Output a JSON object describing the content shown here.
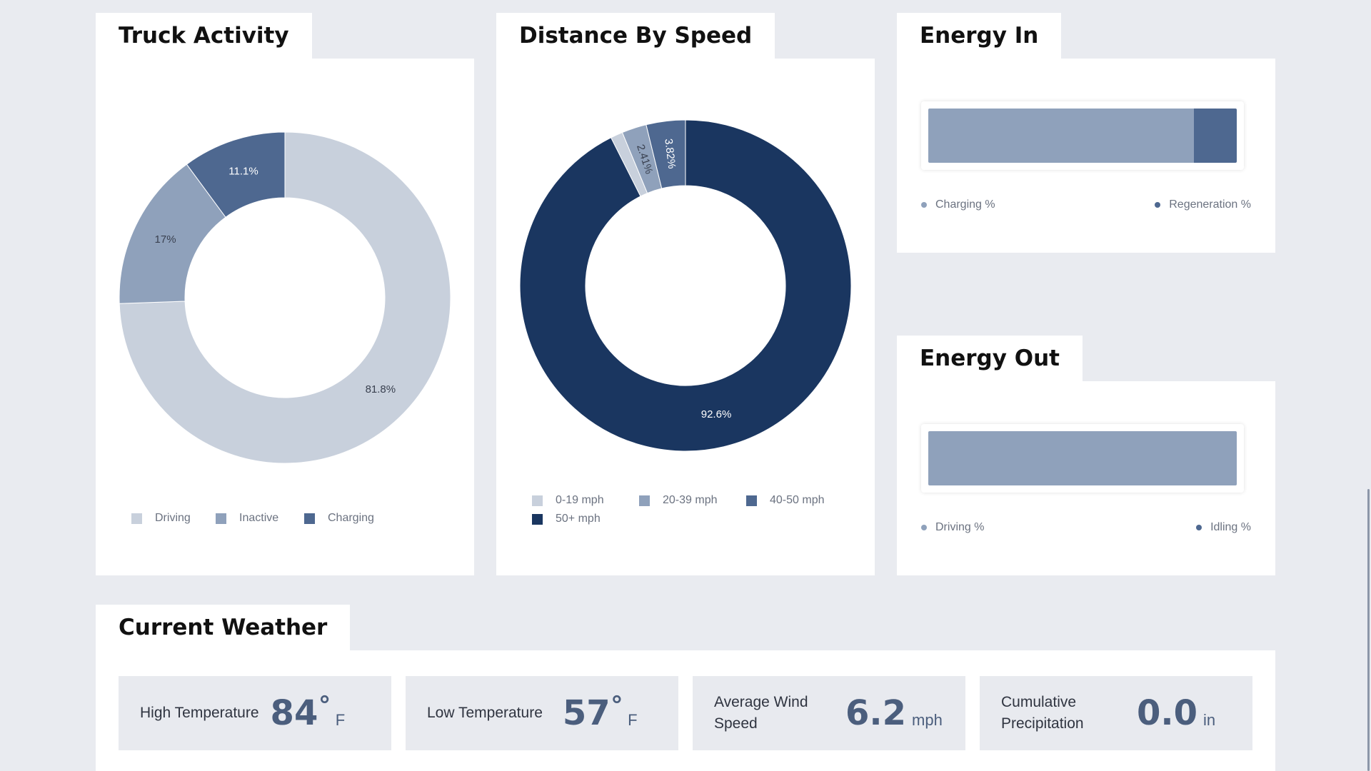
{
  "colors": {
    "background": "#e9ebf0",
    "navy": "#1a3660",
    "mid": "#4e6890",
    "steel": "#8fa1bb",
    "light": "#c8d0dc",
    "weather_value": "#4b5e7d"
  },
  "truck_activity": {
    "title": "Truck Activity",
    "legend": [
      "Driving",
      "Inactive",
      "Charging"
    ],
    "chart_data": {
      "type": "pie",
      "donut": true,
      "labels": [
        "Driving",
        "Inactive",
        "Charging"
      ],
      "values": [
        81.8,
        17,
        11.1
      ],
      "value_labels": [
        "81.8%",
        "17%",
        "11.1%"
      ],
      "colors": [
        "#c8d0dc",
        "#8fa1bb",
        "#4e6890"
      ]
    }
  },
  "distance_by_speed": {
    "title": "Distance By Speed",
    "legend": [
      "0-19 mph",
      "20-39 mph",
      "40-50 mph",
      "50+ mph"
    ],
    "chart_data": {
      "type": "pie",
      "donut": true,
      "labels": [
        "0-19 mph",
        "20-39 mph",
        "40-50 mph",
        "50+ mph"
      ],
      "values": [
        1.2,
        2.41,
        3.82,
        92.6
      ],
      "value_labels": [
        "",
        "2.41%",
        "3.82%",
        "92.6%"
      ],
      "colors": [
        "#c8d0dc",
        "#8fa1bb",
        "#4e6890",
        "#1a3660"
      ]
    }
  },
  "energy_in": {
    "title": "Energy In",
    "legend": [
      "Charging %",
      "Regeneration %"
    ],
    "chart_data": {
      "type": "bar",
      "stacked": true,
      "orientation": "horizontal",
      "series": [
        {
          "name": "Charging %",
          "values": [
            86
          ]
        },
        {
          "name": "Regeneration %",
          "values": [
            14
          ]
        }
      ],
      "colors": [
        "#8fa1bb",
        "#4e6890"
      ]
    }
  },
  "energy_out": {
    "title": "Energy Out",
    "legend": [
      "Driving %",
      "Idling %"
    ],
    "chart_data": {
      "type": "bar",
      "stacked": true,
      "orientation": "horizontal",
      "series": [
        {
          "name": "Driving %",
          "values": [
            100
          ]
        },
        {
          "name": "Idling %",
          "values": [
            0
          ]
        }
      ],
      "colors": [
        "#8fa1bb",
        "#4e6890"
      ]
    }
  },
  "weather": {
    "title": "Current Weather",
    "items": [
      {
        "label": "High Temperature",
        "value": "84",
        "degree": "°",
        "unit": "F"
      },
      {
        "label": "Low Temperature",
        "value": "57",
        "degree": "°",
        "unit": "F"
      },
      {
        "label": "Average Wind Speed",
        "value": "6.2",
        "degree": "",
        "unit": "mph"
      },
      {
        "label": "Cumulative Precipitation",
        "value": "0.0",
        "degree": "",
        "unit": "in"
      }
    ]
  }
}
